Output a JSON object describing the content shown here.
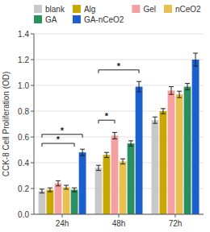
{
  "chart_data": {
    "type": "bar",
    "categories": [
      "24h",
      "48h",
      "72h"
    ],
    "series": [
      {
        "name": "blank",
        "color": "#c8c8c8",
        "values": [
          0.18,
          0.36,
          0.73
        ],
        "errors": [
          0.015,
          0.02,
          0.025
        ]
      },
      {
        "name": "Alg",
        "color": "#c8a800",
        "values": [
          0.19,
          0.46,
          0.8
        ],
        "errors": [
          0.015,
          0.02,
          0.02
        ]
      },
      {
        "name": "Gel",
        "color": "#f4a0a0",
        "values": [
          0.24,
          0.61,
          0.96
        ],
        "errors": [
          0.02,
          0.025,
          0.03
        ]
      },
      {
        "name": "nCeO2",
        "color": "#e8c050",
        "values": [
          0.21,
          0.41,
          0.93
        ],
        "errors": [
          0.015,
          0.02,
          0.025
        ]
      },
      {
        "name": "GA",
        "color": "#2a9060",
        "values": [
          0.19,
          0.55,
          0.99
        ],
        "errors": [
          0.015,
          0.02,
          0.025
        ]
      },
      {
        "name": "GA-nCeO2",
        "color": "#1a5fcc",
        "values": [
          0.48,
          0.99,
          1.2
        ],
        "errors": [
          0.025,
          0.04,
          0.05
        ]
      }
    ],
    "ylabel": "CCK-8 Cell Proliferation (OD)",
    "ylim": [
      0.0,
      1.4
    ],
    "yticks": [
      {
        "value": 0.0,
        "label": "0.0"
      },
      {
        "value": 0.2,
        "label": "0.2"
      },
      {
        "value": 0.4,
        "label": "0.4"
      },
      {
        "value": 0.6,
        "label": "0.6"
      },
      {
        "value": 0.8,
        "label": "0.8"
      },
      {
        "value": 1.0,
        "label": "1.0"
      },
      {
        "value": 1.2,
        "label": "1.2"
      },
      {
        "value": 1.4,
        "label": "1.4"
      }
    ],
    "annotations": [
      {
        "category": "24h",
        "from": "blank",
        "to": "GA-nCeO2",
        "y": 0.62,
        "text": "*"
      },
      {
        "category": "24h",
        "from": "blank",
        "to": "GA",
        "y": 0.55,
        "text": "*"
      },
      {
        "category": "48h",
        "from": "blank",
        "to": "Gel",
        "y": 0.73,
        "text": "*"
      },
      {
        "category": "48h",
        "from": "blank",
        "to": "GA-nCeO2",
        "y": 1.12,
        "text": "*"
      }
    ],
    "grid": true,
    "legend": "upper left"
  }
}
